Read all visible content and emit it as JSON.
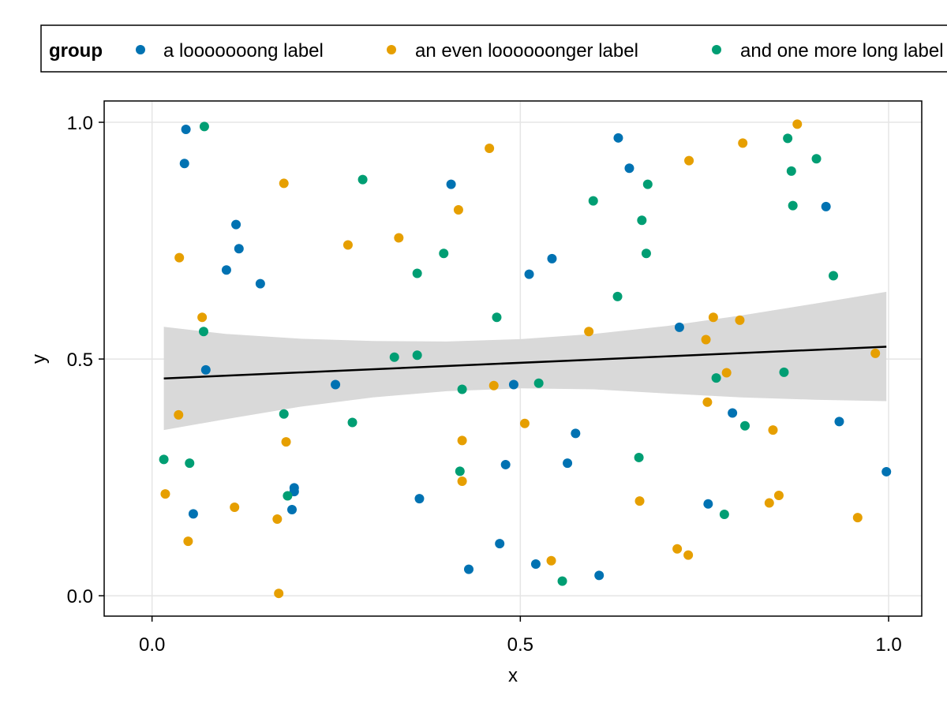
{
  "chart_data": {
    "type": "scatter",
    "xlabel": "x",
    "ylabel": "y",
    "xlim": [
      -0.065,
      1.045
    ],
    "ylim": [
      -0.043,
      1.045
    ],
    "xticks": [
      0.0,
      0.5,
      1.0
    ],
    "yticks": [
      0.0,
      0.5,
      1.0
    ],
    "xtick_labels": [
      "0.0",
      "0.5",
      "1.0"
    ],
    "ytick_labels": [
      "0.0",
      "0.5",
      "1.0"
    ],
    "grid": true,
    "legend": {
      "title": "group",
      "placement": "top",
      "entries": [
        "a looooooong label",
        "an even loooooonger label",
        "and one more long label"
      ]
    },
    "colors": {
      "group_a": "#0072b2",
      "group_b": "#e69f00",
      "group_c": "#009e73",
      "fit_line": "#000000",
      "band": "#d9d9d9",
      "grid": "#e5e5e5"
    },
    "series": [
      {
        "name": "a looooooong label",
        "color": "#0072b2",
        "points": [
          [
            0.046,
            0.985
          ],
          [
            0.044,
            0.913
          ],
          [
            0.114,
            0.784
          ],
          [
            0.118,
            0.733
          ],
          [
            0.101,
            0.688
          ],
          [
            0.147,
            0.659
          ],
          [
            0.073,
            0.477
          ],
          [
            0.249,
            0.446
          ],
          [
            0.193,
            0.228
          ],
          [
            0.193,
            0.22
          ],
          [
            0.19,
            0.182
          ],
          [
            0.056,
            0.173
          ],
          [
            0.406,
            0.869
          ],
          [
            0.363,
            0.205
          ],
          [
            0.43,
            0.056
          ],
          [
            0.48,
            0.277
          ],
          [
            0.491,
            0.446
          ],
          [
            0.512,
            0.679
          ],
          [
            0.543,
            0.712
          ],
          [
            0.521,
            0.067
          ],
          [
            0.564,
            0.28
          ],
          [
            0.575,
            0.343
          ],
          [
            0.607,
            0.043
          ],
          [
            0.633,
            0.967
          ],
          [
            0.648,
            0.903
          ],
          [
            0.716,
            0.567
          ],
          [
            0.755,
            0.194
          ],
          [
            0.788,
            0.386
          ],
          [
            0.915,
            0.822
          ],
          [
            0.933,
            0.368
          ],
          [
            0.997,
            0.262
          ],
          [
            0.472,
            0.11
          ]
        ]
      },
      {
        "name": "an even loooooonger label",
        "color": "#e69f00",
        "points": [
          [
            0.037,
            0.714
          ],
          [
            0.068,
            0.588
          ],
          [
            0.036,
            0.382
          ],
          [
            0.018,
            0.215
          ],
          [
            0.049,
            0.115
          ],
          [
            0.112,
            0.187
          ],
          [
            0.179,
            0.871
          ],
          [
            0.182,
            0.325
          ],
          [
            0.17,
            0.162
          ],
          [
            0.172,
            0.005
          ],
          [
            0.266,
            0.741
          ],
          [
            0.335,
            0.756
          ],
          [
            0.458,
            0.945
          ],
          [
            0.416,
            0.815
          ],
          [
            0.421,
            0.328
          ],
          [
            0.421,
            0.242
          ],
          [
            0.464,
            0.444
          ],
          [
            0.506,
            0.364
          ],
          [
            0.542,
            0.074
          ],
          [
            0.593,
            0.558
          ],
          [
            0.662,
            0.2
          ],
          [
            0.713,
            0.099
          ],
          [
            0.729,
            0.919
          ],
          [
            0.728,
            0.086
          ],
          [
            0.762,
            0.588
          ],
          [
            0.752,
            0.541
          ],
          [
            0.754,
            0.409
          ],
          [
            0.78,
            0.471
          ],
          [
            0.798,
            0.582
          ],
          [
            0.802,
            0.956
          ],
          [
            0.843,
            0.35
          ],
          [
            0.838,
            0.196
          ],
          [
            0.851,
            0.212
          ],
          [
            0.876,
            0.996
          ],
          [
            0.958,
            0.165
          ],
          [
            0.982,
            0.512
          ]
        ]
      },
      {
        "name": "and one more long label",
        "color": "#009e73",
        "points": [
          [
            0.071,
            0.991
          ],
          [
            0.07,
            0.558
          ],
          [
            0.016,
            0.288
          ],
          [
            0.051,
            0.28
          ],
          [
            0.179,
            0.384
          ],
          [
            0.184,
            0.211
          ],
          [
            0.286,
            0.879
          ],
          [
            0.272,
            0.366
          ],
          [
            0.329,
            0.504
          ],
          [
            0.36,
            0.508
          ],
          [
            0.36,
            0.681
          ],
          [
            0.396,
            0.723
          ],
          [
            0.421,
            0.436
          ],
          [
            0.418,
            0.263
          ],
          [
            0.468,
            0.588
          ],
          [
            0.525,
            0.449
          ],
          [
            0.557,
            0.031
          ],
          [
            0.599,
            0.834
          ],
          [
            0.632,
            0.632
          ],
          [
            0.665,
            0.793
          ],
          [
            0.671,
            0.723
          ],
          [
            0.673,
            0.869
          ],
          [
            0.661,
            0.292
          ],
          [
            0.766,
            0.46
          ],
          [
            0.805,
            0.359
          ],
          [
            0.777,
            0.172
          ],
          [
            0.863,
            0.966
          ],
          [
            0.868,
            0.897
          ],
          [
            0.87,
            0.824
          ],
          [
            0.902,
            0.923
          ],
          [
            0.925,
            0.676
          ],
          [
            0.858,
            0.472
          ]
        ]
      }
    ],
    "fit_line": {
      "x": [
        0.016,
        0.997
      ],
      "y": [
        0.459,
        0.526
      ]
    },
    "confidence_band": {
      "x": [
        0.016,
        0.1,
        0.2,
        0.3,
        0.4,
        0.5,
        0.6,
        0.7,
        0.8,
        0.9,
        0.997
      ],
      "upper": [
        0.568,
        0.553,
        0.543,
        0.538,
        0.537,
        0.542,
        0.553,
        0.57,
        0.592,
        0.617,
        0.642
      ],
      "lower": [
        0.35,
        0.373,
        0.399,
        0.419,
        0.432,
        0.438,
        0.436,
        0.427,
        0.419,
        0.414,
        0.411
      ]
    }
  }
}
